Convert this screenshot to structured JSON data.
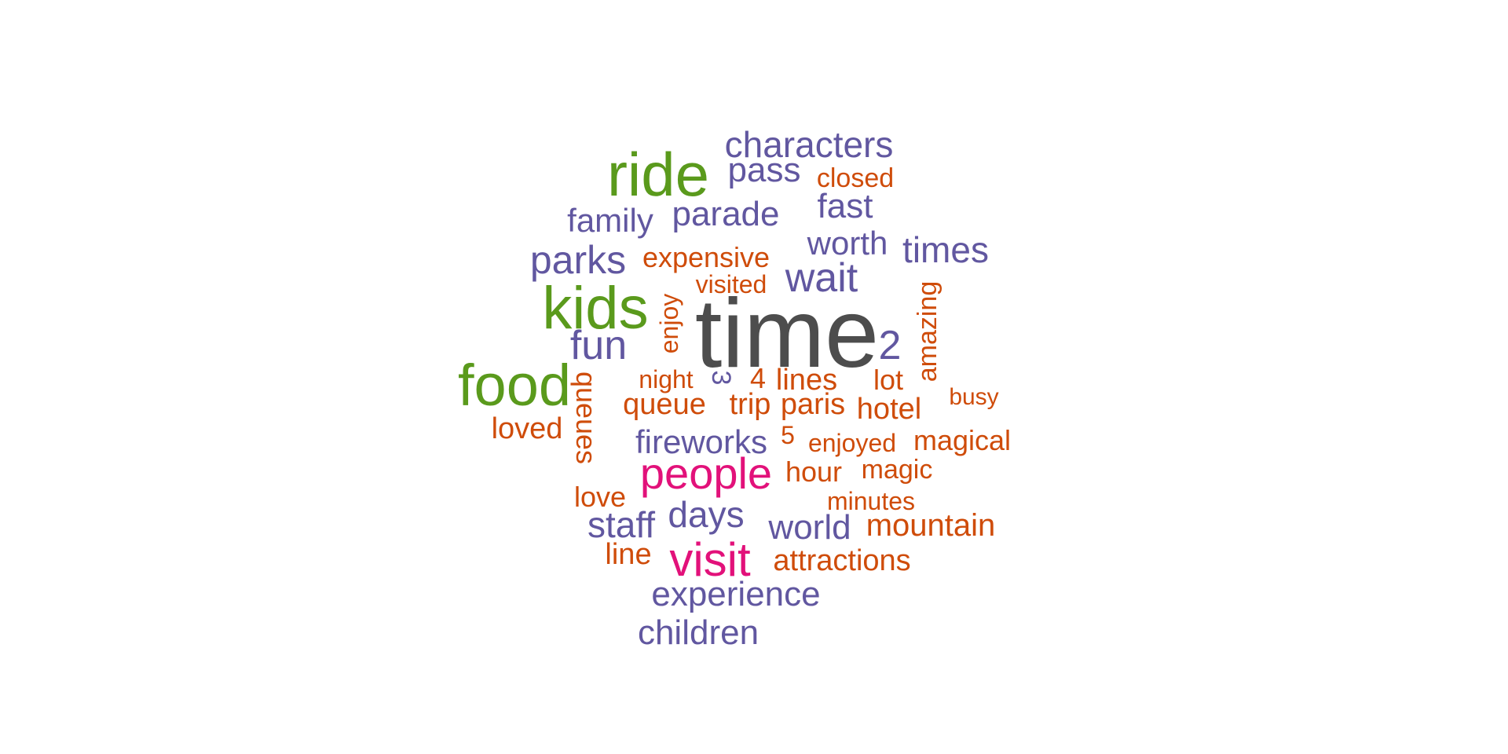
{
  "palette": {
    "gray": "#4d4d4d",
    "green": "#5a9a1c",
    "purple": "#6157a0",
    "orange": "#cf4c0a",
    "pink": "#e2117a"
  },
  "words": {
    "time": "time",
    "ride": "ride",
    "kids": "kids",
    "food": "food",
    "people": "people",
    "visit": "visit",
    "characters": "characters",
    "pass": "pass",
    "closed": "closed",
    "family": "family",
    "parade": "parade",
    "fast": "fast",
    "worth": "worth",
    "times": "times",
    "parks": "parks",
    "expensive": "expensive",
    "wait": "wait",
    "visited": "visited",
    "enjoy": "enjoy",
    "amazing": "amazing",
    "fun": "fun",
    "two": "2",
    "night": "night",
    "three": "3",
    "four": "4",
    "lines": "lines",
    "lot": "lot",
    "busy": "busy",
    "queues": "queues",
    "queue": "queue",
    "trip": "trip",
    "paris": "paris",
    "hotel": "hotel",
    "loved": "loved",
    "fireworks": "fireworks",
    "five": "5",
    "enjoyed": "enjoyed",
    "magical": "magical",
    "hour": "hour",
    "magic": "magic",
    "love": "love",
    "minutes": "minutes",
    "staff": "staff",
    "days": "days",
    "world": "world",
    "mountain": "mountain",
    "line": "line",
    "attractions": "attractions",
    "experience": "experience",
    "children": "children"
  }
}
